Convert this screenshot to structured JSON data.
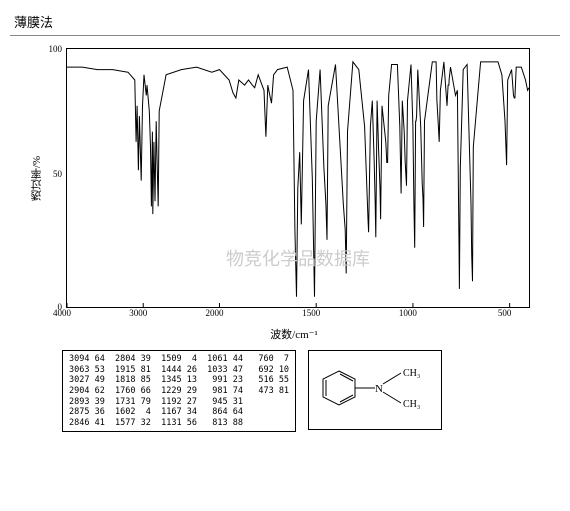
{
  "header": {
    "title": "薄膜法"
  },
  "chart": {
    "type": "line",
    "y_axis_label": "透过率/%",
    "x_axis_label": "波数/cm⁻¹",
    "y_ticks": [
      100,
      50,
      0
    ],
    "x_ticks": [
      4000,
      3000,
      2000,
      1500,
      1000,
      500
    ],
    "x_split_at": 2000,
    "line_color": "#000000",
    "line_width": 1,
    "background_color": "#ffffff",
    "border_color": "#000000",
    "watermark": "物竞化学品数据库",
    "spectrum": [
      [
        4000,
        93
      ],
      [
        3800,
        93
      ],
      [
        3600,
        92
      ],
      [
        3400,
        92
      ],
      [
        3200,
        91
      ],
      [
        3110,
        88
      ],
      [
        3094,
        64
      ],
      [
        3080,
        78
      ],
      [
        3063,
        53
      ],
      [
        3050,
        74
      ],
      [
        3027,
        49
      ],
      [
        3010,
        78
      ],
      [
        2990,
        90
      ],
      [
        2960,
        82
      ],
      [
        2950,
        86
      ],
      [
        2920,
        76
      ],
      [
        2904,
        62
      ],
      [
        2893,
        39
      ],
      [
        2880,
        68
      ],
      [
        2875,
        36
      ],
      [
        2860,
        64
      ],
      [
        2846,
        41
      ],
      [
        2830,
        72
      ],
      [
        2820,
        58
      ],
      [
        2804,
        39
      ],
      [
        2790,
        76
      ],
      [
        2700,
        90
      ],
      [
        2500,
        92
      ],
      [
        2300,
        93
      ],
      [
        2100,
        91
      ],
      [
        2000,
        92
      ],
      [
        1950,
        88
      ],
      [
        1930,
        83
      ],
      [
        1915,
        81
      ],
      [
        1900,
        88
      ],
      [
        1870,
        86
      ],
      [
        1850,
        88
      ],
      [
        1830,
        86
      ],
      [
        1818,
        85
      ],
      [
        1800,
        90
      ],
      [
        1770,
        84
      ],
      [
        1760,
        66
      ],
      [
        1750,
        86
      ],
      [
        1740,
        82
      ],
      [
        1731,
        79
      ],
      [
        1720,
        90
      ],
      [
        1700,
        92
      ],
      [
        1650,
        93
      ],
      [
        1620,
        84
      ],
      [
        1610,
        30
      ],
      [
        1602,
        4
      ],
      [
        1595,
        46
      ],
      [
        1585,
        60
      ],
      [
        1577,
        32
      ],
      [
        1565,
        80
      ],
      [
        1540,
        92
      ],
      [
        1520,
        50
      ],
      [
        1509,
        4
      ],
      [
        1500,
        72
      ],
      [
        1480,
        92
      ],
      [
        1460,
        54
      ],
      [
        1450,
        40
      ],
      [
        1444,
        26
      ],
      [
        1438,
        78
      ],
      [
        1400,
        94
      ],
      [
        1360,
        40
      ],
      [
        1350,
        30
      ],
      [
        1345,
        13
      ],
      [
        1338,
        68
      ],
      [
        1310,
        95
      ],
      [
        1280,
        92
      ],
      [
        1250,
        70
      ],
      [
        1240,
        50
      ],
      [
        1232,
        34
      ],
      [
        1229,
        29
      ],
      [
        1220,
        70
      ],
      [
        1210,
        80
      ],
      [
        1200,
        56
      ],
      [
        1195,
        40
      ],
      [
        1192,
        27
      ],
      [
        1185,
        80
      ],
      [
        1178,
        62
      ],
      [
        1170,
        46
      ],
      [
        1167,
        34
      ],
      [
        1160,
        78
      ],
      [
        1140,
        64
      ],
      [
        1135,
        56
      ],
      [
        1131,
        56
      ],
      [
        1125,
        82
      ],
      [
        1110,
        94
      ],
      [
        1080,
        94
      ],
      [
        1068,
        70
      ],
      [
        1061,
        44
      ],
      [
        1055,
        80
      ],
      [
        1045,
        68
      ],
      [
        1040,
        56
      ],
      [
        1033,
        47
      ],
      [
        1028,
        80
      ],
      [
        1010,
        94
      ],
      [
        1000,
        70
      ],
      [
        995,
        40
      ],
      [
        991,
        23
      ],
      [
        986,
        72
      ],
      [
        984,
        72
      ],
      [
        981,
        74
      ],
      [
        975,
        92
      ],
      [
        960,
        70
      ],
      [
        952,
        48
      ],
      [
        948,
        42
      ],
      [
        945,
        31
      ],
      [
        940,
        72
      ],
      [
        900,
        95
      ],
      [
        880,
        95
      ],
      [
        876,
        80
      ],
      [
        870,
        72
      ],
      [
        864,
        64
      ],
      [
        858,
        84
      ],
      [
        840,
        95
      ],
      [
        824,
        78
      ],
      [
        818,
        86
      ],
      [
        814,
        86
      ],
      [
        813,
        88
      ],
      [
        806,
        93
      ],
      [
        780,
        82
      ],
      [
        770,
        84
      ],
      [
        765,
        46
      ],
      [
        762,
        24
      ],
      [
        760,
        7
      ],
      [
        755,
        54
      ],
      [
        740,
        92
      ],
      [
        720,
        94
      ],
      [
        700,
        40
      ],
      [
        696,
        20
      ],
      [
        692,
        10
      ],
      [
        688,
        62
      ],
      [
        650,
        95
      ],
      [
        560,
        95
      ],
      [
        540,
        90
      ],
      [
        524,
        72
      ],
      [
        516,
        55
      ],
      [
        510,
        88
      ],
      [
        490,
        92
      ],
      [
        480,
        82
      ],
      [
        476,
        81
      ],
      [
        473,
        81
      ],
      [
        466,
        93
      ],
      [
        440,
        93
      ],
      [
        418,
        88
      ],
      [
        407,
        84
      ],
      [
        400,
        85
      ]
    ]
  },
  "table": {
    "font_family": "monospace",
    "font_size": 8.5,
    "rows": [
      [
        "3094",
        "64",
        "2804",
        "39",
        "1509",
        " 4",
        "1061",
        "44",
        "760",
        " 7"
      ],
      [
        "3063",
        "53",
        "1915",
        "81",
        "1444",
        "26",
        "1033",
        "47",
        "692",
        "10"
      ],
      [
        "3027",
        "49",
        "1818",
        "85",
        "1345",
        "13",
        "991",
        "23",
        "516",
        "55"
      ],
      [
        "2904",
        "62",
        "1760",
        "66",
        "1229",
        "29",
        "981",
        "74",
        "473",
        "81"
      ],
      [
        "2893",
        "39",
        "1731",
        "79",
        "1192",
        "27",
        "945",
        "31",
        "",
        ""
      ],
      [
        "2875",
        "36",
        "1602",
        " 4",
        "1167",
        "34",
        "864",
        "64",
        "",
        ""
      ],
      [
        "2846",
        "41",
        "1577",
        "32",
        "1131",
        "56",
        "813",
        "88",
        "",
        ""
      ]
    ]
  },
  "structure": {
    "label": "N,N-dimethylaniline",
    "ch3_a": "CH₃",
    "ch3_b": "CH₃",
    "atom": "N"
  }
}
